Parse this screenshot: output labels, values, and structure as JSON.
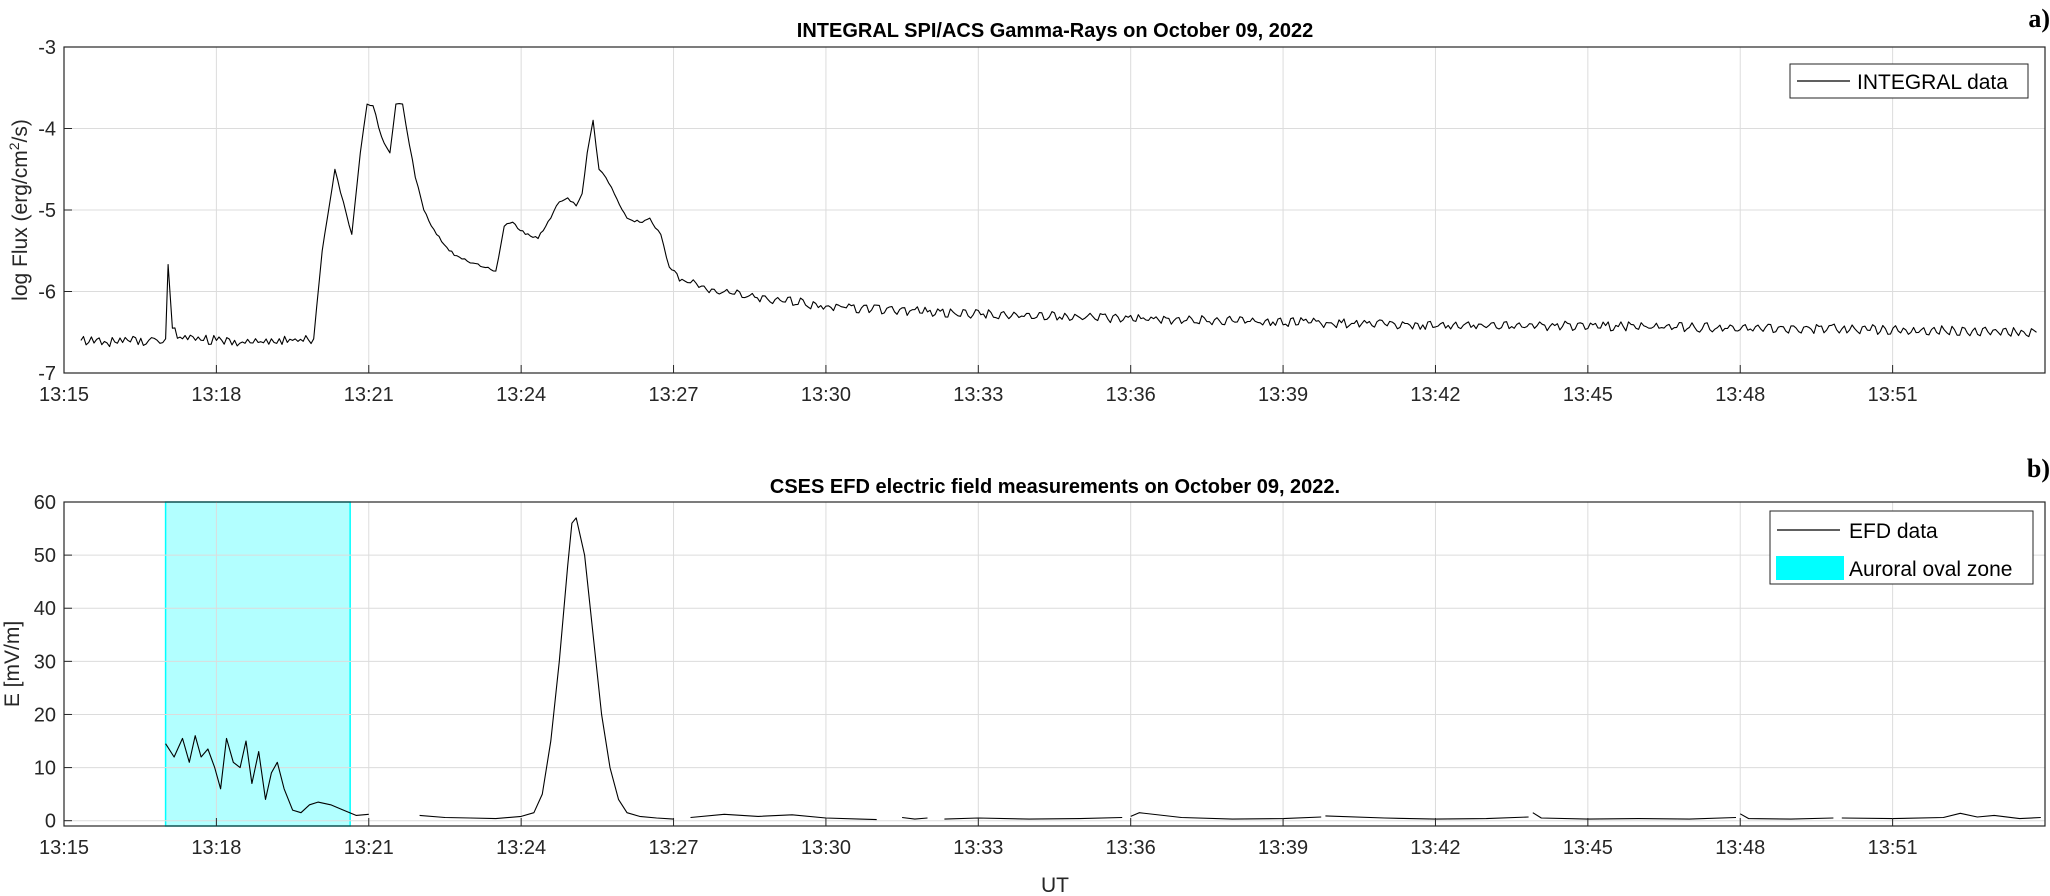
{
  "chart_data": [
    {
      "panel_label": "a)",
      "type": "line",
      "title": "INTEGRAL SPI/ACS Gamma-Rays on October 09, 2022",
      "xlabel": "",
      "ylabel": "log Flux (erg/cm²/s)",
      "ylabel_parts": [
        "log Flux (erg/cm",
        "2",
        "/s)"
      ],
      "xlim": [
        "13:15",
        "13:54"
      ],
      "ylim": [
        -7,
        -3
      ],
      "yticks": [
        "-3",
        "-4",
        "-5",
        "-6",
        "-7"
      ],
      "xticks": [
        "13:15",
        "13:18",
        "13:21",
        "13:24",
        "13:27",
        "13:30",
        "13:33",
        "13:36",
        "13:39",
        "13:42",
        "13:45",
        "13:48",
        "13:51"
      ],
      "grid": true,
      "legend_position": "top-right",
      "series": [
        {
          "name": "INTEGRAL data",
          "color": "#000000",
          "x": [
            "13:15:20",
            "13:16:00",
            "13:16:40",
            "13:17:00",
            "13:17:03",
            "13:17:08",
            "13:17:20",
            "13:18:00",
            "13:18:40",
            "13:19:30",
            "13:19:55",
            "13:20:05",
            "13:20:20",
            "13:20:30",
            "13:20:40",
            "13:20:50",
            "13:20:58",
            "13:21:05",
            "13:21:15",
            "13:21:25",
            "13:21:32",
            "13:21:40",
            "13:21:48",
            "13:21:55",
            "13:22:05",
            "13:22:20",
            "13:22:35",
            "13:22:50",
            "13:23:00",
            "13:23:15",
            "13:23:30",
            "13:23:40",
            "13:23:50",
            "13:24:05",
            "13:24:20",
            "13:24:35",
            "13:24:45",
            "13:24:55",
            "13:25:05",
            "13:25:12",
            "13:25:18",
            "13:25:25",
            "13:25:32",
            "13:25:40",
            "13:25:50",
            "13:26:05",
            "13:26:20",
            "13:26:32",
            "13:26:45",
            "13:26:55",
            "13:27:10",
            "13:27:30",
            "13:28:00",
            "13:29:00",
            "13:30:00",
            "13:32:00",
            "13:35:00",
            "13:38:00",
            "13:41:00",
            "13:44:00",
            "13:47:00",
            "13:50:00",
            "13:53:50"
          ],
          "values": [
            -6.6,
            -6.62,
            -6.6,
            -6.58,
            -5.67,
            -6.45,
            -6.58,
            -6.6,
            -6.63,
            -6.6,
            -6.58,
            -5.5,
            -4.5,
            -4.9,
            -5.3,
            -4.3,
            -3.7,
            -3.72,
            -4.1,
            -4.3,
            -3.7,
            -3.7,
            -4.2,
            -4.6,
            -5.0,
            -5.3,
            -5.5,
            -5.6,
            -5.65,
            -5.7,
            -5.75,
            -5.2,
            -5.15,
            -5.3,
            -5.35,
            -5.1,
            -4.9,
            -4.85,
            -4.95,
            -4.8,
            -4.3,
            -3.9,
            -4.5,
            -4.6,
            -4.8,
            -5.1,
            -5.15,
            -5.1,
            -5.3,
            -5.7,
            -5.85,
            -5.95,
            -6.0,
            -6.1,
            -6.18,
            -6.25,
            -6.32,
            -6.36,
            -6.4,
            -6.42,
            -6.44,
            -6.46,
            -6.5
          ]
        }
      ]
    },
    {
      "panel_label": "b)",
      "type": "line",
      "title": "CSES EFD electric field measurements on October 09, 2022.",
      "xlabel": "UT",
      "ylabel": "E [mV/m]",
      "xlim": [
        "13:15",
        "13:54"
      ],
      "ylim": [
        -1,
        60
      ],
      "yticks": [
        "60",
        "50",
        "40",
        "30",
        "20",
        "10",
        "0"
      ],
      "xticks": [
        "13:15",
        "13:18",
        "13:21",
        "13:24",
        "13:27",
        "13:30",
        "13:33",
        "13:36",
        "13:39",
        "13:42",
        "13:45",
        "13:48",
        "13:51"
      ],
      "grid": true,
      "legend_position": "top-right",
      "shaded_region": {
        "name": "Auroral oval zone",
        "x_start": "13:17:00",
        "x_end": "13:20:38",
        "color": "#00ffff"
      },
      "series": [
        {
          "name": "EFD data",
          "color": "#000000",
          "segments": [
            {
              "x": [
                "13:17:00",
                "13:17:10",
                "13:17:20",
                "13:17:28",
                "13:17:35",
                "13:17:42",
                "13:17:50",
                "13:17:58",
                "13:18:05",
                "13:18:12",
                "13:18:20",
                "13:18:28",
                "13:18:35",
                "13:18:42",
                "13:18:50",
                "13:18:58",
                "13:19:05",
                "13:19:12",
                "13:19:20",
                "13:19:30",
                "13:19:40",
                "13:19:50",
                "13:20:00",
                "13:20:15",
                "13:20:30",
                "13:20:45",
                "13:21:00"
              ],
              "values": [
                14.5,
                12,
                15.5,
                11,
                16,
                12,
                13.5,
                10,
                6,
                15.5,
                11,
                10,
                15,
                7,
                13,
                4,
                9,
                11,
                6,
                2,
                1.5,
                3,
                3.5,
                3,
                2,
                1,
                1.2
              ]
            },
            {
              "x": [
                "13:22:00",
                "13:22:30",
                "13:23:00",
                "13:23:30",
                "13:24:00",
                "13:24:15",
                "13:24:25",
                "13:24:35",
                "13:24:45",
                "13:24:55",
                "13:25:00",
                "13:25:05",
                "13:25:15",
                "13:25:25",
                "13:25:35",
                "13:25:45",
                "13:25:55",
                "13:26:05",
                "13:26:20",
                "13:26:40",
                "13:27:00"
              ],
              "values": [
                1,
                0.6,
                0.5,
                0.4,
                0.8,
                1.5,
                5,
                15,
                30,
                48,
                56,
                57,
                50,
                35,
                20,
                10,
                4,
                1.5,
                0.8,
                0.5,
                0.3
              ]
            },
            {
              "x": [
                "13:27:20",
                "13:28:00",
                "13:28:40",
                "13:29:20",
                "13:30:00",
                "13:30:40",
                "13:31:00"
              ],
              "values": [
                0.6,
                1.2,
                0.8,
                1.1,
                0.5,
                0.3,
                0.2
              ]
            },
            {
              "x": [
                "13:31:30",
                "13:31:45",
                "13:32:00"
              ],
              "values": [
                0.6,
                0.3,
                0.5
              ]
            },
            {
              "x": [
                "13:32:20",
                "13:33:00",
                "13:34:00",
                "13:35:00",
                "13:35:50"
              ],
              "values": [
                0.3,
                0.5,
                0.3,
                0.4,
                0.6
              ]
            },
            {
              "x": [
                "13:36:00",
                "13:36:10",
                "13:37:00",
                "13:38:00",
                "13:39:00",
                "13:39:45"
              ],
              "values": [
                0.8,
                1.5,
                0.6,
                0.3,
                0.4,
                0.7
              ]
            },
            {
              "x": [
                "13:39:50",
                "13:41:00",
                "13:42:00",
                "13:43:00",
                "13:43:50"
              ],
              "values": [
                0.9,
                0.5,
                0.3,
                0.4,
                0.7
              ]
            },
            {
              "x": [
                "13:43:55",
                "13:44:05",
                "13:45:00",
                "13:46:00",
                "13:47:00",
                "13:47:55"
              ],
              "values": [
                1.5,
                0.5,
                0.3,
                0.4,
                0.3,
                0.6
              ]
            },
            {
              "x": [
                "13:48:00",
                "13:48:10",
                "13:49:00",
                "13:49:50"
              ],
              "values": [
                1.3,
                0.4,
                0.3,
                0.5
              ]
            },
            {
              "x": [
                "13:50:00",
                "13:51:00",
                "13:52:00",
                "13:52:20",
                "13:52:40",
                "13:53:00",
                "13:53:30",
                "13:53:55"
              ],
              "values": [
                0.5,
                0.4,
                0.6,
                1.4,
                0.7,
                1.0,
                0.4,
                0.6
              ]
            }
          ]
        }
      ]
    }
  ]
}
